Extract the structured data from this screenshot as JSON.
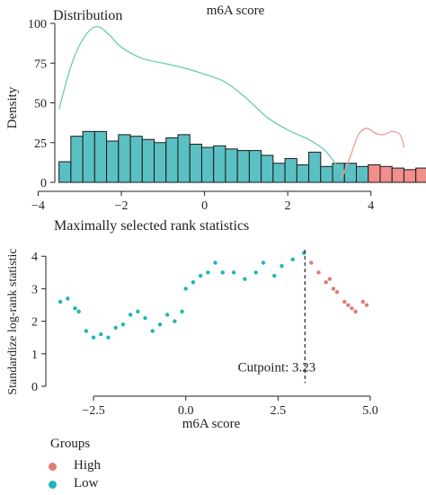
{
  "chart_data": [
    {
      "type": "bar",
      "title": "Distribution",
      "subtitle": "m6A score",
      "ylabel": "Density",
      "xlabel": "",
      "xlim": [
        -3.6,
        5.0
      ],
      "ylim": [
        0,
        100
      ],
      "x_ticks": [
        -4,
        -2,
        0,
        2,
        4
      ],
      "x_tick_labels": [
        "−4",
        "−2",
        "0",
        "2",
        "4"
      ],
      "y_ticks": [
        0,
        25,
        50,
        75,
        100
      ],
      "y_tick_labels": [
        "0",
        "25",
        "50",
        "75",
        "100"
      ],
      "grid": false,
      "colors": {
        "Low": "#5bc0c4",
        "High": "#f08f8b",
        "bar_edge": "#1a1a1a"
      },
      "histogram": {
        "bin_start": -3.5,
        "bin_width": 0.286,
        "low_counts": [
          13,
          29,
          32,
          32,
          26,
          30,
          29,
          27,
          25,
          28,
          30,
          24,
          22,
          23,
          21,
          20,
          20,
          17,
          12,
          15,
          11,
          19,
          10,
          12,
          12,
          10
        ],
        "high_counts": [
          11,
          10,
          9,
          8,
          9,
          2
        ]
      },
      "density": {
        "Low": {
          "x": [
            -3.5,
            -3.2,
            -2.9,
            -2.6,
            -2.3,
            -2.0,
            -1.5,
            -1.0,
            -0.5,
            0.0,
            0.5,
            1.0,
            1.5,
            2.0,
            2.5,
            2.9,
            3.2,
            3.5
          ],
          "y": [
            46,
            74,
            91,
            98,
            93,
            85,
            78,
            75,
            72,
            68,
            63,
            53,
            41,
            33,
            27,
            20,
            10,
            3
          ]
        },
        "High": {
          "x": [
            3.3,
            3.5,
            3.7,
            3.9,
            4.1,
            4.3,
            4.5,
            4.7,
            4.8
          ],
          "y": [
            3,
            16,
            30,
            34,
            31,
            30,
            32,
            30,
            22
          ]
        }
      }
    },
    {
      "type": "scatter",
      "title": "Maximally selected rank statistics",
      "xlabel": "m6A score",
      "ylabel": "Standardize log-rank statistic",
      "xlim": [
        -3.5,
        5.0
      ],
      "ylim": [
        0,
        4.2
      ],
      "x_ticks": [
        -2.5,
        0.0,
        2.5,
        5.0
      ],
      "x_tick_labels": [
        "−2.5",
        "0.0",
        "2.5",
        "5.0"
      ],
      "y_ticks": [
        0,
        1,
        2,
        3,
        4
      ],
      "y_tick_labels": [
        "0",
        "1",
        "2",
        "3",
        "4"
      ],
      "grid": false,
      "cutpoint": {
        "value": 3.23,
        "label": "Cutpoint: 3.23"
      },
      "series": [
        {
          "name": "Low",
          "color": "#1fb6b6",
          "x": [
            -3.4,
            -3.2,
            -3.0,
            -2.9,
            -2.7,
            -2.5,
            -2.3,
            -2.1,
            -1.9,
            -1.7,
            -1.5,
            -1.3,
            -1.1,
            -0.9,
            -0.7,
            -0.5,
            -0.3,
            -0.1,
            0.0,
            0.2,
            0.4,
            0.6,
            0.8,
            1.0,
            1.3,
            1.6,
            1.9,
            2.1,
            2.4,
            2.6,
            2.9,
            3.2
          ],
          "y": [
            2.6,
            2.7,
            2.4,
            2.3,
            1.7,
            1.5,
            1.6,
            1.5,
            1.8,
            1.9,
            2.2,
            2.3,
            2.1,
            1.7,
            1.9,
            2.2,
            2.0,
            2.3,
            3.0,
            3.2,
            3.4,
            3.5,
            3.8,
            3.5,
            3.5,
            3.3,
            3.5,
            3.8,
            3.4,
            3.7,
            3.9,
            4.1
          ]
        },
        {
          "name": "High",
          "color": "#e07b77",
          "x": [
            3.4,
            3.6,
            3.8,
            3.9,
            4.0,
            4.1,
            4.3,
            4.4,
            4.5,
            4.6,
            4.8,
            4.9
          ],
          "y": [
            3.8,
            3.5,
            3.2,
            3.3,
            3.0,
            2.9,
            2.6,
            2.5,
            2.4,
            2.3,
            2.6,
            2.5
          ]
        }
      ]
    }
  ],
  "legend": {
    "title": "Groups",
    "items": [
      {
        "label": "High",
        "color": "#e07b77"
      },
      {
        "label": "Low",
        "color": "#1fb6b6"
      }
    ]
  }
}
